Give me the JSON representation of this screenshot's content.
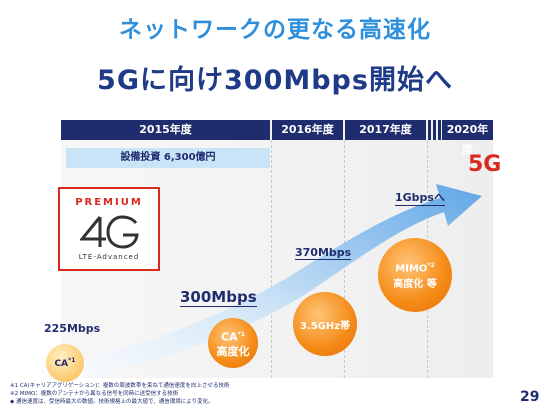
{
  "slide": {
    "title": "ネットワークの更なる高速化",
    "subtitle": "5Gに向け300Mbps開始へ",
    "page_number": "29"
  },
  "timeline": {
    "years": [
      "2015年度",
      "2016年度",
      "2017年度",
      "2020年度"
    ],
    "investment": "設備投資 6,300億円",
    "target_label": "5G"
  },
  "logo": {
    "premium": "PREMIUM",
    "mark": "4G",
    "subtext": "LTE-Advanced"
  },
  "speeds": {
    "s225": "225Mbps",
    "s300": "300Mbps",
    "s370": "370Mbps",
    "s1g": "1Gbpsへ"
  },
  "technologies": {
    "ca1": "CA",
    "ca1_mark": "*1",
    "ca2_line1": "CA",
    "ca2_mark": "*1",
    "ca2_line2": "高度化",
    "ghz": "3.5GHz帯",
    "mimo_line1": "MIMO",
    "mimo_mark": "*2",
    "mimo_line2": "高度化 等"
  },
  "footnotes": [
    "※1 CA(キャリアアグリゲーション)：複数の周波数帯を束ねて通信速度を向上させる技術",
    "※2 MIMO：複数のアンテナから異なる信号を同時に送受信する技術",
    "◆ 通信速度は、受信時最大の数値。技術規格上の最大値で、通信環境により変化。"
  ],
  "colors": {
    "title": "#2e8fdc",
    "navy": "#1f2d6e",
    "red": "#d82a1e",
    "orange": "#f48a16"
  }
}
